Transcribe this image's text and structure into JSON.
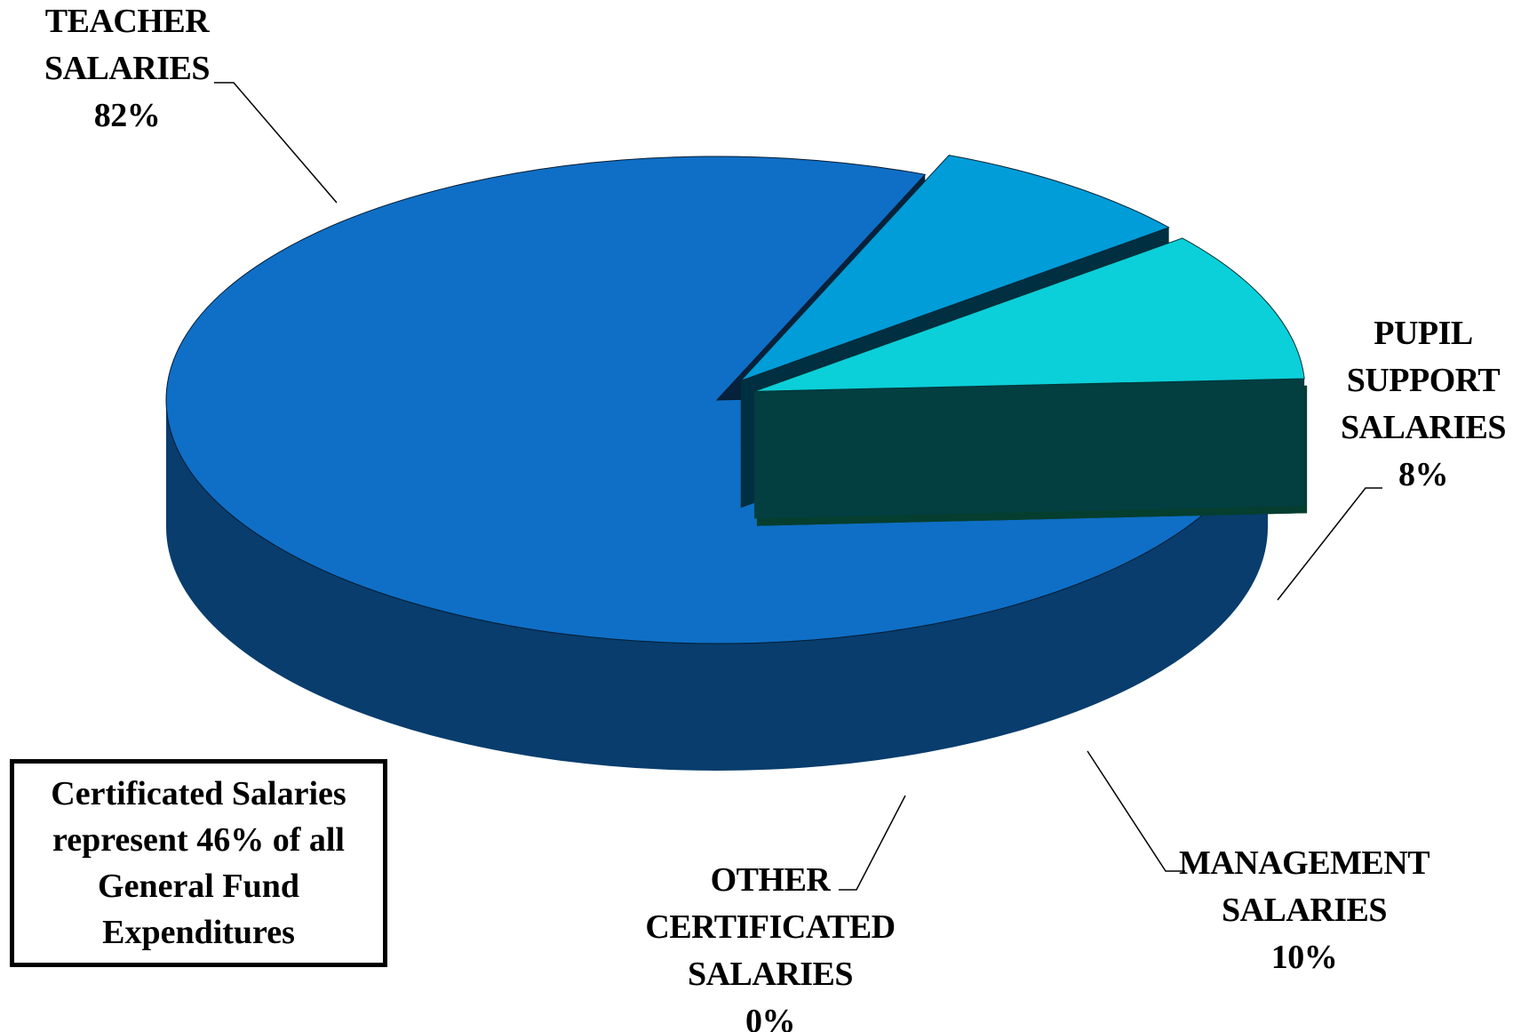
{
  "chart_data": {
    "type": "pie",
    "categories": [
      "TEACHER SALARIES",
      "PUPIL SUPPORT SALARIES",
      "MANAGEMENT SALARIES",
      "OTHER CERTIFICATED SALARIES"
    ],
    "values": [
      82,
      8,
      10,
      0
    ],
    "value_labels": [
      "82%",
      "8%",
      "10%",
      "0%"
    ],
    "colors": [
      "#0f6fc6",
      "#009dd9",
      "#0bd0d9",
      "#10cf9b"
    ],
    "annotation": "Certificated Salaries represent 46% of all General Fund Expenditures"
  }
}
